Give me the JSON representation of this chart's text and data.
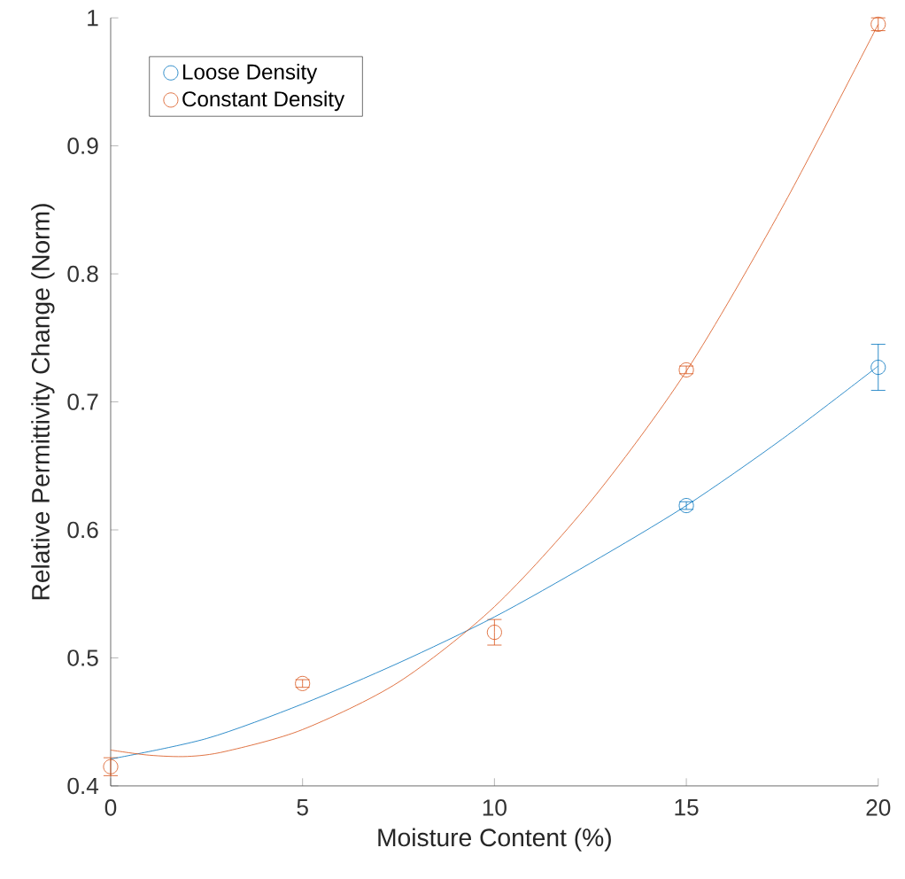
{
  "chart_data": {
    "type": "scatter",
    "xlabel": "Moisture Content (%)",
    "ylabel": "Relative Permittivity Change (Norm)",
    "x": [
      0,
      5,
      10,
      15,
      20
    ],
    "series": [
      {
        "name": "Loose Density",
        "color": "#0072bd",
        "values": [
          null,
          null,
          null,
          0.619,
          0.727
        ],
        "errors": [
          null,
          null,
          null,
          0.003,
          0.018
        ]
      },
      {
        "name": "Constant Density",
        "color": "#d95319",
        "values": [
          0.415,
          0.48,
          0.52,
          0.725,
          0.995
        ],
        "errors": [
          0.007,
          0.003,
          0.01,
          0.003,
          0.005
        ]
      },
      {
        "type": "line",
        "color": "#0072bd",
        "marker": "none",
        "x": [
          0,
          2.5,
          5,
          7.5,
          10,
          12.5,
          15,
          17.5,
          20
        ],
        "values": [
          0.421,
          0.437,
          0.464,
          0.496,
          0.532,
          0.574,
          0.619,
          0.671,
          0.728
        ]
      },
      {
        "type": "line",
        "color": "#d95319",
        "marker": "none",
        "x": [
          0,
          1,
          2,
          3,
          5,
          7.5,
          10,
          12.5,
          15,
          17.5,
          20
        ],
        "values": [
          0.428,
          0.424,
          0.423,
          0.427,
          0.444,
          0.481,
          0.54,
          0.622,
          0.724,
          0.852,
          0.995
        ]
      }
    ],
    "xlim": [
      0,
      20
    ],
    "ylim": [
      0.4,
      1
    ],
    "xticks": [
      0,
      5,
      10,
      15,
      20
    ],
    "yticks": [
      {
        "value": 0.4,
        "label": "0.4"
      },
      {
        "value": 0.5,
        "label": "0.5"
      },
      {
        "value": 0.6,
        "label": "0.6"
      },
      {
        "value": 0.7,
        "label": "0.7"
      },
      {
        "value": 0.8,
        "label": "0.8"
      },
      {
        "value": 0.9,
        "label": "0.9"
      },
      {
        "value": 1,
        "label": "1"
      }
    ],
    "marker": "circle",
    "legend": "top left",
    "grid": false
  }
}
